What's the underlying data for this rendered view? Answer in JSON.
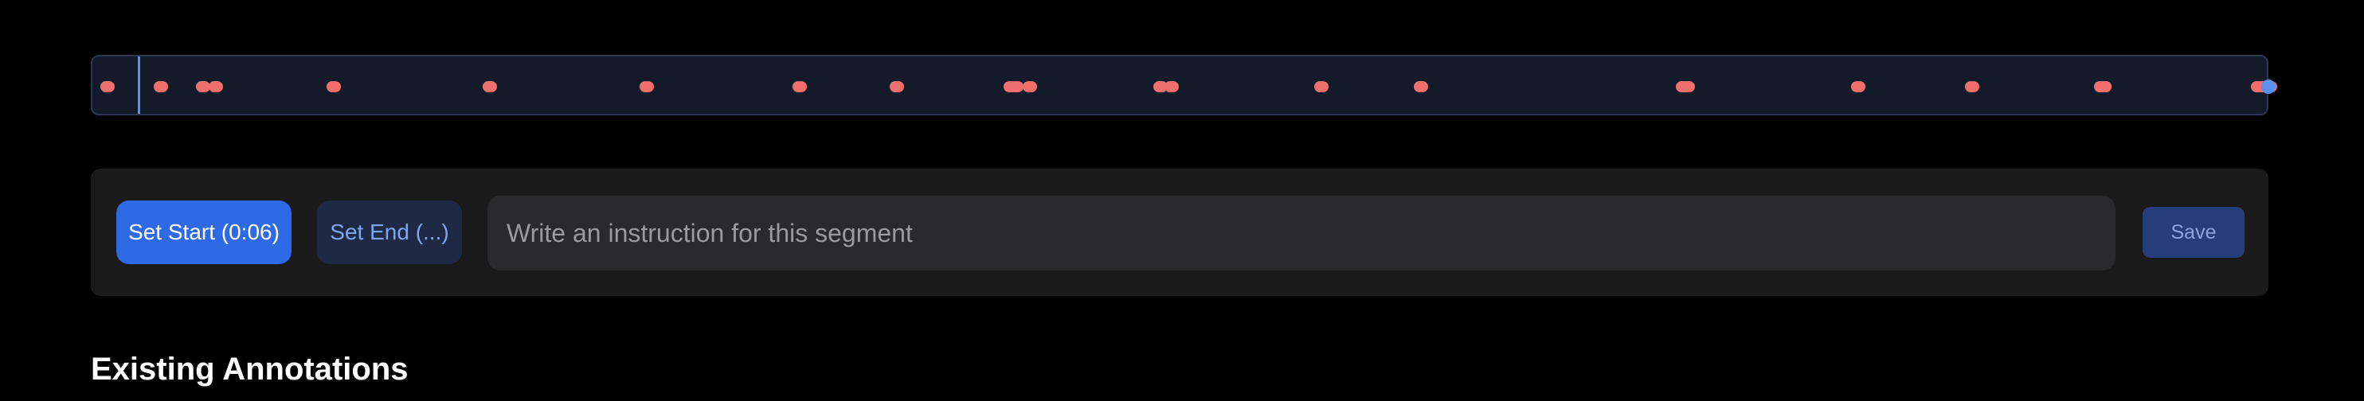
{
  "timeline": {
    "marker_color": "#ef6f6c",
    "playhead_color": "#5b8ff0",
    "marker_count": 26,
    "playhead_icon": "playhead-line",
    "end_handle_icon": "end-handle-dot"
  },
  "controls": {
    "set_start_label": "Set Start (0:06)",
    "set_end_label": "Set End (...)",
    "instruction_placeholder": "Write an instruction for this segment",
    "instruction_value": "",
    "save_label": "Save",
    "accent_color": "#2f6ae6"
  },
  "section": {
    "title": "Existing Annotations"
  }
}
